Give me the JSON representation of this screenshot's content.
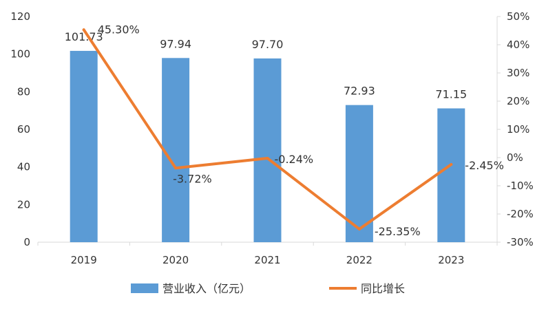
{
  "chart_data": {
    "type": "bar+line",
    "categories": [
      "2019",
      "2020",
      "2021",
      "2022",
      "2023"
    ],
    "series": [
      {
        "name": "营业收入（亿元）",
        "type": "bar",
        "axis": "left",
        "color": "#5b9bd5",
        "values": [
          101.73,
          97.94,
          97.7,
          72.93,
          71.15
        ],
        "labels": [
          "101.73",
          "97.94",
          "97.70",
          "72.93",
          "71.15"
        ]
      },
      {
        "name": "同比增长",
        "type": "line",
        "axis": "right",
        "color": "#ed7d31",
        "values": [
          45.3,
          -3.72,
          -0.24,
          -25.35,
          -2.45
        ],
        "labels": [
          "45.30%",
          "-3.72%",
          "-0.24%",
          "-25.35%",
          "-2.45%"
        ]
      }
    ],
    "y_left": {
      "min": 0,
      "max": 120,
      "ticks": [
        "0",
        "20",
        "40",
        "60",
        "80",
        "100",
        "120"
      ]
    },
    "y_right": {
      "min": -30,
      "max": 50,
      "ticks": [
        "-30%",
        "-20%",
        "-10%",
        "0%",
        "10%",
        "20%",
        "30%",
        "40%",
        "50%"
      ]
    },
    "legend_position": "bottom",
    "grid": false
  }
}
